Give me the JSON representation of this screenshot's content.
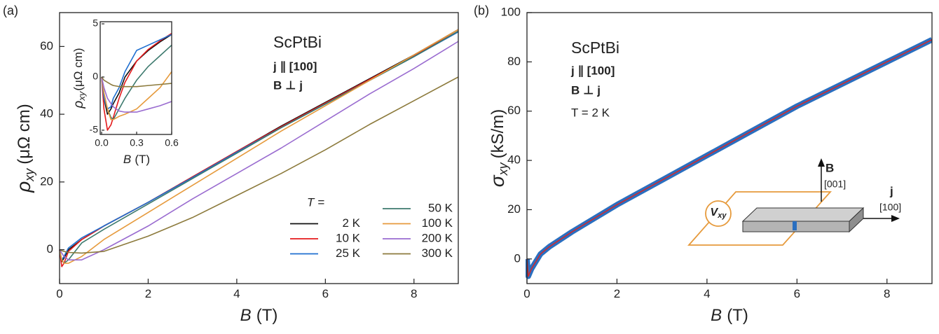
{
  "chart_data": [
    {
      "type": "line",
      "panel_label": "(a)",
      "annotations": [
        "ScPtBi",
        "j ∥ [100]",
        "B ⊥ j"
      ],
      "legend_title": "T =",
      "x_label": {
        "symbol": "B",
        "unit": "(T)"
      },
      "y_label": {
        "symbol": "ρ",
        "sub": "xy",
        "unit": "(μΩ cm)"
      },
      "xlim": [
        0,
        9
      ],
      "ylim": [
        -10,
        70
      ],
      "xticks": [
        0,
        2,
        4,
        6,
        8
      ],
      "yticks": [
        0,
        20,
        40,
        60
      ],
      "x": [
        0,
        0.05,
        0.1,
        0.2,
        0.5,
        1,
        2,
        3,
        4,
        5,
        6,
        7,
        8,
        9
      ],
      "series": [
        {
          "name": "2 K",
          "color": "#111111",
          "values": [
            0,
            -3.5,
            -2.5,
            0,
            3,
            7,
            14,
            21.5,
            29,
            36.5,
            43.5,
            50.5,
            57.5,
            65
          ]
        },
        {
          "name": "10 K",
          "color": "#e41a1c",
          "values": [
            0,
            -5,
            -4,
            -0.5,
            3,
            7,
            14,
            21.5,
            29,
            36.3,
            43.3,
            50.3,
            57.3,
            64.5
          ]
        },
        {
          "name": "25 K",
          "color": "#1f6fd0",
          "values": [
            0,
            -3,
            -2,
            0.5,
            3.5,
            7,
            14,
            21.3,
            28.8,
            36,
            43,
            50,
            57,
            64.3
          ]
        },
        {
          "name": "50 K",
          "color": "#3d7a6e",
          "values": [
            0,
            -3,
            -4,
            -3,
            2,
            6,
            13.5,
            21,
            28.5,
            36,
            43,
            50,
            57,
            64.5
          ]
        },
        {
          "name": "100 K",
          "color": "#e69a3c",
          "values": [
            0,
            -3,
            -4,
            -4,
            -2,
            3,
            11,
            19,
            27,
            35,
            42.5,
            50,
            57.5,
            65
          ]
        },
        {
          "name": "200 K",
          "color": "#9a6cd0",
          "values": [
            0,
            -1,
            -2,
            -3,
            -3,
            0,
            7,
            15,
            22.5,
            30,
            38,
            46,
            53.5,
            61.5
          ]
        },
        {
          "name": "300 K",
          "color": "#8c7a3c",
          "values": [
            0,
            -0.3,
            -0.5,
            -0.8,
            -1,
            -0.5,
            4,
            9.5,
            16,
            22.5,
            29.5,
            37,
            44,
            51
          ]
        }
      ]
    },
    {
      "type": "line",
      "x_label": {
        "symbol": "B",
        "unit": "(T)"
      },
      "y_label": {
        "symbol": "ρ",
        "sub": "xy",
        "unit": "(μΩ cm)"
      },
      "xlim": [
        0,
        0.6
      ],
      "ylim": [
        -5.4,
        5.2
      ],
      "xticks": [
        {
          "value": 0,
          "label": "0.0"
        },
        {
          "value": 0.3,
          "label": "0.3"
        },
        {
          "value": 0.6,
          "label": "0.6"
        }
      ],
      "yticks": [
        -5,
        0,
        5
      ],
      "x": [
        0,
        0.02,
        0.05,
        0.08,
        0.1,
        0.15,
        0.2,
        0.3,
        0.4,
        0.5,
        0.6
      ],
      "series": [
        {
          "color": "#111111",
          "values": [
            0,
            -2,
            -3.5,
            -3,
            -2.5,
            -1.5,
            0,
            1.5,
            2.5,
            3.3,
            4
          ]
        },
        {
          "color": "#e41a1c",
          "values": [
            0,
            -3,
            -5,
            -4.5,
            -3.8,
            -2,
            -0.5,
            1.5,
            2.6,
            3.4,
            4.1
          ]
        },
        {
          "color": "#1f6fd0",
          "values": [
            0,
            -2,
            -3,
            -2.8,
            -2,
            -1,
            0.5,
            2.5,
            3,
            3.5,
            4
          ]
        },
        {
          "color": "#3d7a6e",
          "values": [
            0,
            -1.5,
            -3,
            -3.8,
            -4,
            -3,
            -2,
            -0.3,
            1,
            2,
            3
          ]
        },
        {
          "color": "#e69a3c",
          "values": [
            0,
            -1.5,
            -3,
            -4,
            -4,
            -3.7,
            -3.5,
            -3,
            -2,
            -1,
            0.5
          ]
        },
        {
          "color": "#9a6cd0",
          "values": [
            0,
            -1,
            -2,
            -2.5,
            -2.8,
            -3.2,
            -3.3,
            -3.3,
            -3,
            -2.7,
            -2.3
          ]
        },
        {
          "color": "#8c7a3c",
          "values": [
            0,
            -0.3,
            -0.5,
            -0.7,
            -0.8,
            -0.9,
            -0.9,
            -0.9,
            -0.8,
            -0.7,
            -0.6
          ]
        }
      ]
    },
    {
      "type": "line",
      "panel_label": "(b)",
      "annotations": [
        "ScPtBi",
        "j ∥ [100]",
        "B ⊥ j",
        "T = 2 K"
      ],
      "diagram_labels": {
        "field": "B",
        "field_dir": "[001]",
        "current": "j",
        "current_dir": "[100]",
        "voltage": "V",
        "voltage_sub": "xy"
      },
      "x_label": {
        "symbol": "B",
        "unit": "(T)"
      },
      "y_label": {
        "symbol": "σ",
        "sub": "xy",
        "unit": "(kS/m)"
      },
      "xlim": [
        0,
        9
      ],
      "ylim": [
        -10,
        100
      ],
      "xticks": [
        0,
        2,
        4,
        6,
        8
      ],
      "yticks": [
        0,
        20,
        40,
        60,
        80,
        100
      ],
      "x": [
        0,
        0.03,
        0.1,
        0.2,
        0.3,
        0.5,
        1,
        2,
        3,
        4,
        5,
        6,
        7,
        8,
        9
      ],
      "series": [
        {
          "color": "#2a6fc0",
          "values": [
            0,
            -7,
            -4,
            -1,
            2,
            5,
            11,
            22,
            32,
            42,
            52,
            62,
            71,
            80,
            89
          ]
        },
        {
          "color": "#d62728",
          "values": [
            0,
            -7,
            -4,
            -1,
            2,
            5,
            11,
            22,
            32,
            42,
            52,
            62,
            71,
            80,
            89
          ]
        }
      ]
    }
  ]
}
